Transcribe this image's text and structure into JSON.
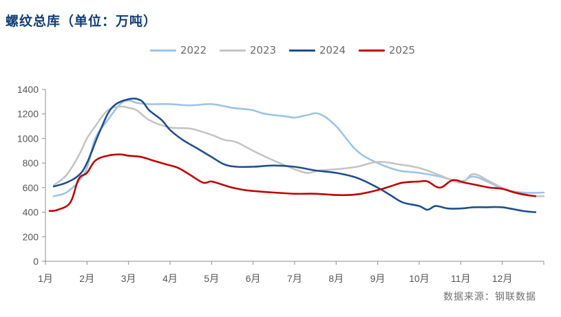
{
  "chart_data": {
    "type": "line",
    "title": "螺纹总库（单位：万吨）",
    "source": "数据来源：钢联数据",
    "xlabel": "",
    "ylabel": "",
    "ylim": [
      0,
      1400
    ],
    "yticks": [
      0,
      200,
      400,
      600,
      800,
      1000,
      1200,
      1400
    ],
    "xlim": [
      0,
      12
    ],
    "x_tick_labels": [
      "1月",
      "2月",
      "3月",
      "4月",
      "5月",
      "6月",
      "7月",
      "8月",
      "9月",
      "10月",
      "11月",
      "12月"
    ],
    "legend_position": "top-center",
    "series": [
      {
        "name": "2022",
        "color": "#9dc3e6",
        "x": [
          0.2,
          0.5,
          0.8,
          1.0,
          1.2,
          1.5,
          1.8,
          2.0,
          2.2,
          2.5,
          3.0,
          3.5,
          4.0,
          4.5,
          4.8,
          5.0,
          5.3,
          5.8,
          6.0,
          6.3,
          6.6,
          7.0,
          7.5,
          8.0,
          8.5,
          9.0,
          9.5,
          10.0,
          10.3,
          10.7,
          11.0,
          11.5,
          12.0
        ],
        "y": [
          530,
          560,
          650,
          760,
          1000,
          1150,
          1280,
          1310,
          1290,
          1280,
          1280,
          1270,
          1280,
          1250,
          1240,
          1230,
          1200,
          1180,
          1170,
          1190,
          1200,
          1100,
          900,
          800,
          740,
          720,
          690,
          650,
          690,
          640,
          590,
          560,
          560
        ]
      },
      {
        "name": "2023",
        "color": "#c4c4c4",
        "x": [
          0.2,
          0.5,
          0.8,
          1.0,
          1.2,
          1.5,
          1.8,
          2.0,
          2.2,
          2.5,
          3.0,
          3.5,
          4.0,
          4.3,
          4.6,
          5.0,
          5.5,
          6.0,
          6.3,
          6.6,
          7.0,
          7.5,
          8.0,
          8.5,
          9.0,
          9.5,
          10.0,
          10.3,
          10.7,
          11.0,
          11.5,
          12.0
        ],
        "y": [
          620,
          700,
          860,
          1000,
          1100,
          1230,
          1260,
          1250,
          1230,
          1150,
          1090,
          1080,
          1030,
          990,
          970,
          900,
          820,
          750,
          720,
          740,
          750,
          770,
          810,
          790,
          760,
          700,
          640,
          710,
          650,
          600,
          540,
          530
        ]
      },
      {
        "name": "2024",
        "color": "#1f4e8c",
        "x": [
          0.2,
          0.5,
          0.8,
          1.0,
          1.3,
          1.6,
          2.0,
          2.3,
          2.5,
          2.8,
          3.0,
          3.3,
          3.6,
          4.0,
          4.3,
          4.6,
          5.0,
          5.5,
          6.0,
          6.5,
          7.0,
          7.5,
          8.0,
          8.3,
          8.6,
          9.0,
          9.2,
          9.4,
          9.7,
          10.0,
          10.3,
          10.6,
          11.0,
          11.5,
          11.8
        ],
        "y": [
          610,
          640,
          700,
          800,
          1050,
          1250,
          1320,
          1310,
          1230,
          1150,
          1070,
          990,
          930,
          850,
          790,
          770,
          770,
          780,
          770,
          740,
          720,
          680,
          600,
          540,
          480,
          450,
          420,
          450,
          430,
          430,
          440,
          440,
          440,
          410,
          400
        ]
      },
      {
        "name": "2025",
        "color": "#c00000",
        "x": [
          0.1,
          0.3,
          0.6,
          0.8,
          1.0,
          1.2,
          1.5,
          1.8,
          2.0,
          2.3,
          2.6,
          2.9,
          3.2,
          3.5,
          3.8,
          4.0,
          4.3,
          4.5,
          4.8,
          5.1,
          5.5,
          6.0,
          6.5,
          7.0,
          7.3,
          7.6,
          8.0,
          8.3,
          8.6,
          9.0,
          9.2,
          9.5,
          9.8,
          10.1,
          10.4,
          10.7,
          11.0,
          11.3,
          11.6,
          11.8
        ],
        "y": [
          410,
          420,
          480,
          670,
          720,
          820,
          860,
          870,
          860,
          850,
          820,
          790,
          760,
          700,
          640,
          650,
          620,
          600,
          580,
          570,
          560,
          550,
          550,
          540,
          540,
          550,
          580,
          610,
          640,
          650,
          650,
          600,
          660,
          640,
          620,
          600,
          590,
          560,
          540,
          530
        ]
      }
    ]
  }
}
